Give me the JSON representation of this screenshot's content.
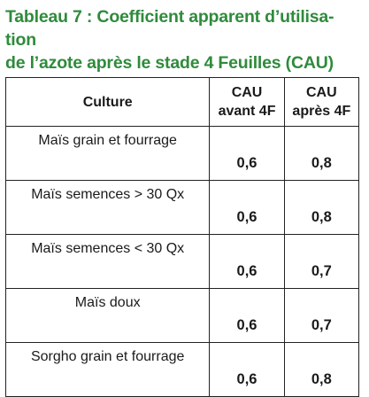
{
  "title": {
    "line1": "Tableau 7 : Coefficient apparent d’utilisa-",
    "line2": "tion",
    "line3": "de l’azote après le stade 4 Feuilles (CAU)"
  },
  "table": {
    "headers": {
      "culture": "Culture",
      "cau_avant_line1": "CAU",
      "cau_avant_line2": "avant 4F",
      "cau_apres_line1": "CAU",
      "cau_apres_line2": "après 4F"
    },
    "rows": [
      {
        "culture": "Maïs grain et fourrage",
        "avant": "0,6",
        "apres": "0,8"
      },
      {
        "culture": "Maïs semences > 30 Qx",
        "avant": "0,6",
        "apres": "0,8"
      },
      {
        "culture": "Maïs semences < 30 Qx",
        "avant": "0,6",
        "apres": "0,7"
      },
      {
        "culture": "Maïs doux",
        "avant": "0,6",
        "apres": "0,7"
      },
      {
        "culture": "Sorgho grain et fourrage",
        "avant": "0,6",
        "apres": "0,8"
      }
    ]
  },
  "colors": {
    "title": "#2f8b3c",
    "text": "#1a1a1a",
    "border": "#222222"
  }
}
